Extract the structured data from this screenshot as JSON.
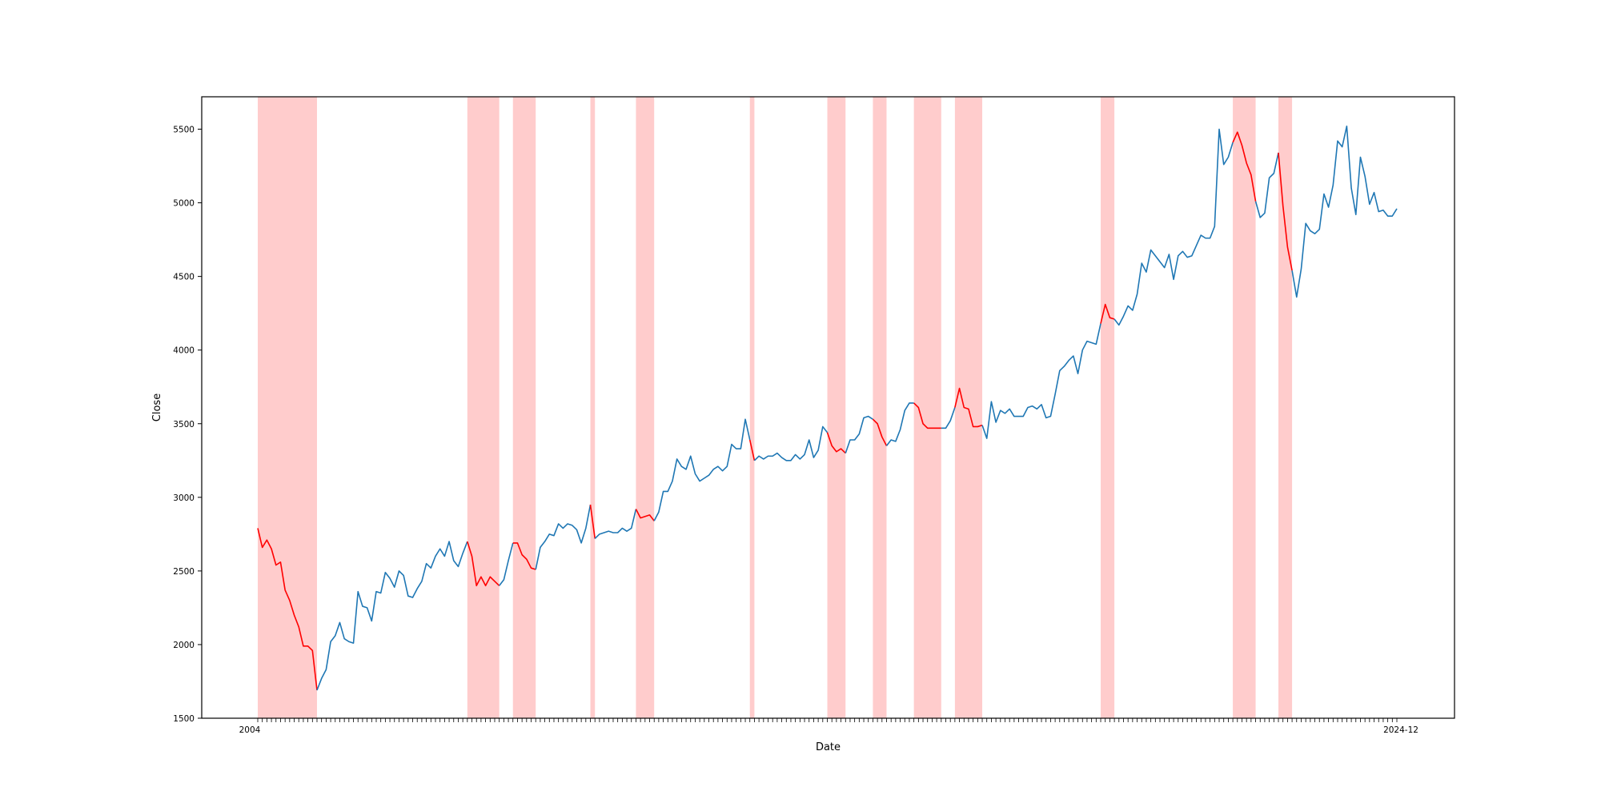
{
  "chart_data": {
    "type": "line",
    "title": "",
    "xlabel": "Date",
    "ylabel": "Close",
    "ylim": [
      1500,
      5720
    ],
    "yticks": [
      1500,
      2000,
      2500,
      3000,
      3500,
      4000,
      4500,
      5000,
      5500
    ],
    "x_tick_first_label": "2004",
    "x_tick_last_label": "2024-12",
    "grid": false,
    "legend": "none",
    "colors": {
      "line": "#1f77b4",
      "decline": "#ff0000",
      "shade": "#ff0000",
      "axes": "#000000"
    },
    "series": [
      {
        "values": [
          2790,
          2660,
          2710,
          2650,
          2540,
          2560,
          2370,
          2300,
          2200,
          2120,
          1990,
          1990,
          1960,
          1690,
          1770,
          1830,
          2020,
          2060,
          2150,
          2040,
          2020,
          2010,
          2360,
          2260,
          2250,
          2160,
          2360,
          2350,
          2490,
          2450,
          2390,
          2500,
          2470,
          2330,
          2320,
          2380,
          2430,
          2550,
          2520,
          2600,
          2650,
          2600,
          2700,
          2570,
          2530,
          2620,
          2700,
          2600,
          2400,
          2460,
          2400,
          2460,
          2430,
          2400,
          2440,
          2570,
          2690,
          2690,
          2610,
          2580,
          2520,
          2510,
          2660,
          2700,
          2750,
          2740,
          2820,
          2790,
          2820,
          2810,
          2780,
          2690,
          2790,
          2950,
          2720,
          2750,
          2760,
          2770,
          2760,
          2760,
          2790,
          2770,
          2790,
          2920,
          2860,
          2870,
          2880,
          2840,
          2900,
          3040,
          3040,
          3110,
          3260,
          3210,
          3190,
          3280,
          3160,
          3110,
          3130,
          3150,
          3190,
          3210,
          3180,
          3210,
          3360,
          3330,
          3330,
          3530,
          3390,
          3250,
          3280,
          3260,
          3280,
          3280,
          3300,
          3270,
          3250,
          3250,
          3290,
          3260,
          3290,
          3390,
          3270,
          3320,
          3480,
          3440,
          3350,
          3310,
          3330,
          3300,
          3390,
          3390,
          3430,
          3540,
          3550,
          3530,
          3500,
          3410,
          3350,
          3390,
          3380,
          3460,
          3590,
          3640,
          3640,
          3610,
          3500,
          3470,
          3470,
          3470,
          3470,
          3470,
          3520,
          3610,
          3740,
          3610,
          3600,
          3480,
          3480,
          3490,
          3400,
          3650,
          3510,
          3590,
          3570,
          3600,
          3550,
          3550,
          3550,
          3610,
          3620,
          3600,
          3630,
          3540,
          3550,
          3700,
          3860,
          3890,
          3930,
          3960,
          3840,
          4000,
          4060,
          4050,
          4040,
          4180,
          4310,
          4220,
          4210,
          4170,
          4230,
          4300,
          4270,
          4380,
          4590,
          4530,
          4680,
          4640,
          4600,
          4560,
          4650,
          4480,
          4640,
          4670,
          4630,
          4640,
          4710,
          4780,
          4760,
          4760,
          4840,
          5500,
          5260,
          5310,
          5410,
          5480,
          5390,
          5270,
          5190,
          5010,
          4900,
          4930,
          5170,
          5200,
          5340,
          4980,
          4700,
          4540,
          4360,
          4550,
          4860,
          4810,
          4790,
          4820,
          5060,
          4970,
          5120,
          5420,
          5380,
          5520,
          5100,
          4920,
          5310,
          5180,
          4990,
          5070,
          4940,
          4950,
          4910,
          4910,
          4960
        ]
      }
    ],
    "declines": [
      {
        "start": 0,
        "end": 13
      },
      {
        "start": 46,
        "end": 53
      },
      {
        "start": 56,
        "end": 61
      },
      {
        "start": 73,
        "end": 74
      },
      {
        "start": 83,
        "end": 87
      },
      {
        "start": 108,
        "end": 109
      },
      {
        "start": 125,
        "end": 129
      },
      {
        "start": 135,
        "end": 138
      },
      {
        "start": 144,
        "end": 150
      },
      {
        "start": 153,
        "end": 159
      },
      {
        "start": 185,
        "end": 188
      },
      {
        "start": 214,
        "end": 219
      },
      {
        "start": 224,
        "end": 227
      }
    ]
  }
}
